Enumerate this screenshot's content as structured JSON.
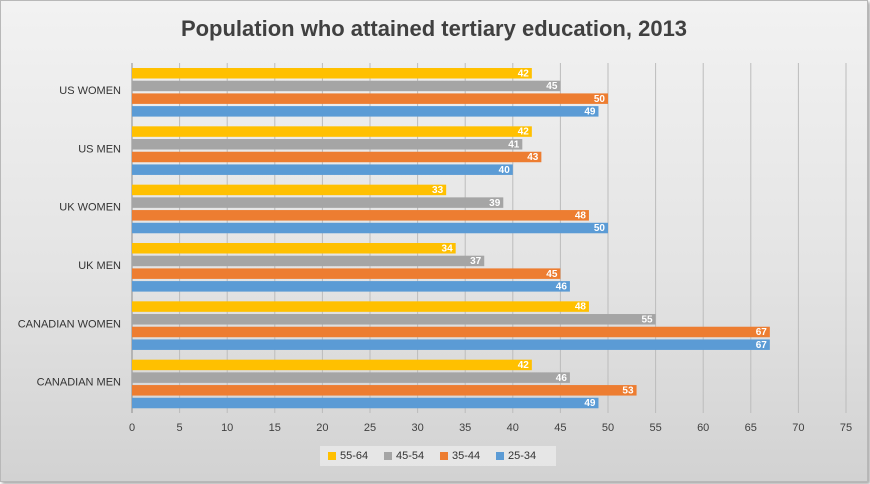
{
  "chart_data": {
    "type": "bar",
    "orientation": "horizontal",
    "title": "Population who attained tertiary education, 2013",
    "categories": [
      "US WOMEN",
      "US MEN",
      "UK WOMEN",
      "UK MEN",
      "CANADIAN WOMEN",
      "CANADIAN MEN"
    ],
    "series": [
      {
        "name": "55-64",
        "color": "#FFC000",
        "values": [
          42,
          42,
          33,
          34,
          48,
          42
        ]
      },
      {
        "name": "45-54",
        "color": "#A5A5A5",
        "values": [
          45,
          41,
          39,
          37,
          55,
          46
        ]
      },
      {
        "name": "35-44",
        "color": "#ED7D31",
        "values": [
          50,
          43,
          48,
          45,
          67,
          53
        ]
      },
      {
        "name": "25-34",
        "color": "#5B9BD5",
        "values": [
          49,
          40,
          50,
          46,
          67,
          49
        ]
      }
    ],
    "xlim": [
      0,
      75
    ],
    "xticks": [
      0,
      5,
      10,
      15,
      20,
      25,
      30,
      35,
      40,
      45,
      50,
      55,
      60,
      65,
      70,
      75
    ],
    "grid": true,
    "legend_position": "bottom",
    "xlabel": "",
    "ylabel": ""
  }
}
